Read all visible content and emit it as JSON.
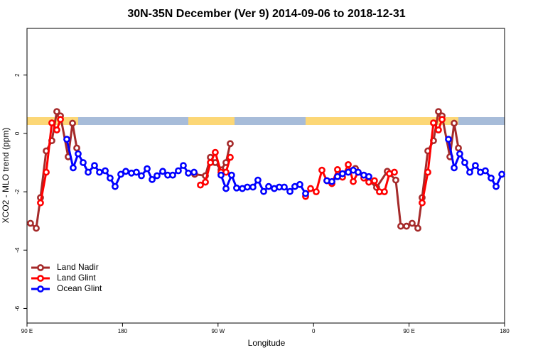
{
  "chart_data": {
    "type": "line",
    "title": "30N-35N December (Ver 9)   2014-09-06 to 2018-12-31",
    "x_label": "Longitude",
    "y_label": "XCO2 - MLO trend (ppm)",
    "xlim": [
      90,
      540
    ],
    "xticks": [
      {
        "value": 90,
        "label": "90 E"
      },
      180,
      {
        "value": 270,
        "label": "90 W"
      },
      {
        "value": 360,
        "label": "0"
      },
      {
        "value": 450,
        "label": "90 E"
      },
      {
        "value": 540,
        "label": "180"
      }
    ],
    "ylim": [
      -6.5,
      3.6
    ],
    "yticks": [
      -6,
      -4,
      -2,
      0,
      2
    ],
    "legend": "bottom-left",
    "series": [
      {
        "name": "Land Nadir",
        "color": "#a52a2a",
        "x": [
          93.3,
          98.7,
          102.7,
          108.1,
          113.4,
          118.1,
          121.5,
          128.8,
          132.9,
          136.9,
          null,
          248.0,
          258.1,
          262.8,
          267.4,
          272.8,
          277.5,
          281.5,
          null,
          399.4,
          419.4,
          429.5,
          437.5,
          442.2,
          447.6,
          452.9,
          458.3,
          462.3,
          467.7,
          473.0,
          477.7,
          481.1,
          488.5,
          492.5,
          496.5
        ],
        "values": [
          -3.08,
          -3.25,
          -2.2,
          -0.6,
          -0.25,
          0.75,
          0.6,
          -0.8,
          0.35,
          -0.5,
          null,
          -1.4,
          -1.45,
          -0.82,
          -1.0,
          -1.25,
          -1.0,
          -0.35,
          null,
          -1.2,
          -1.85,
          -1.3,
          -1.6,
          -3.18,
          -3.18,
          -3.08,
          -3.25,
          -2.2,
          -0.6,
          -0.25,
          0.75,
          0.6,
          -0.8,
          0.35,
          -0.5
        ]
      },
      {
        "name": "Land Glint",
        "color": "#ff0000",
        "x": [
          102.7,
          108.1,
          113.4,
          118.1,
          121.5,
          null,
          253.4,
          258.1,
          262.8,
          267.4,
          272.8,
          277.5,
          281.5,
          null,
          352.5,
          357.2,
          362.5,
          367.9,
          372.6,
          377.3,
          382.6,
          387.3,
          392.7,
          397.4,
          402.0,
          407.4,
          412.1,
          417.4,
          422.1,
          426.8,
          431.5,
          436.2,
          null,
          462.3,
          467.7,
          473.0,
          477.7,
          481.1
        ],
        "values": [
          -2.38,
          -1.33,
          0.36,
          0.12,
          0.48,
          null,
          -1.77,
          -1.67,
          -1.0,
          -0.65,
          -1.33,
          -1.33,
          -0.82,
          null,
          -2.16,
          -1.89,
          -2.0,
          -1.26,
          -1.62,
          -1.72,
          -1.24,
          -1.5,
          -1.07,
          -1.65,
          -1.33,
          -1.53,
          -1.67,
          -1.62,
          -2.0,
          -2.0,
          -1.38,
          -1.33,
          null,
          -2.38,
          -1.33,
          0.36,
          0.12,
          0.48
        ]
      },
      {
        "name": "Ocean Glint",
        "color": "#0000ff",
        "x": [
          127.5,
          133.5,
          138.2,
          142.9,
          147.6,
          153.6,
          158.3,
          163.7,
          168.3,
          173.0,
          178.4,
          183.1,
          188.4,
          193.1,
          197.8,
          203.2,
          207.9,
          212.5,
          217.9,
          222.6,
          227.3,
          232.6,
          237.3,
          242.0,
          247.4,
          null,
          272.8,
          277.5,
          282.8,
          287.5,
          292.9,
          297.6,
          302.9,
          307.6,
          313.0,
          317.7,
          323.0,
          327.7,
          332.4,
          337.8,
          342.4,
          347.1,
          352.5,
          null,
          372.6,
          377.3,
          382.6,
          387.3,
          392.7,
          397.4,
          402.0,
          407.4,
          412.1,
          null,
          487.1,
          492.5,
          497.8,
          502.5,
          507.2,
          512.5,
          517.2,
          521.9,
          527.3,
          532.0,
          537.4
        ],
        "values": [
          -0.2,
          -1.18,
          -0.7,
          -1.0,
          -1.33,
          -1.1,
          -1.33,
          -1.28,
          -1.53,
          -1.82,
          -1.4,
          -1.3,
          -1.36,
          -1.33,
          -1.45,
          -1.21,
          -1.58,
          -1.45,
          -1.3,
          -1.43,
          -1.43,
          -1.28,
          -1.1,
          -1.36,
          -1.33,
          null,
          -1.43,
          -1.89,
          -1.43,
          -1.87,
          -1.89,
          -1.84,
          -1.84,
          -1.6,
          -1.99,
          -1.82,
          -1.89,
          -1.84,
          -1.84,
          -1.99,
          -1.82,
          -1.75,
          -2.06,
          null,
          -1.62,
          -1.65,
          -1.48,
          -1.38,
          -1.33,
          -1.26,
          -1.33,
          -1.43,
          -1.48,
          null,
          -0.2,
          -1.18,
          -0.7,
          -1.0,
          -1.33,
          -1.1,
          -1.33,
          -1.28,
          -1.53,
          -1.82,
          -1.4
        ]
      }
    ]
  }
}
